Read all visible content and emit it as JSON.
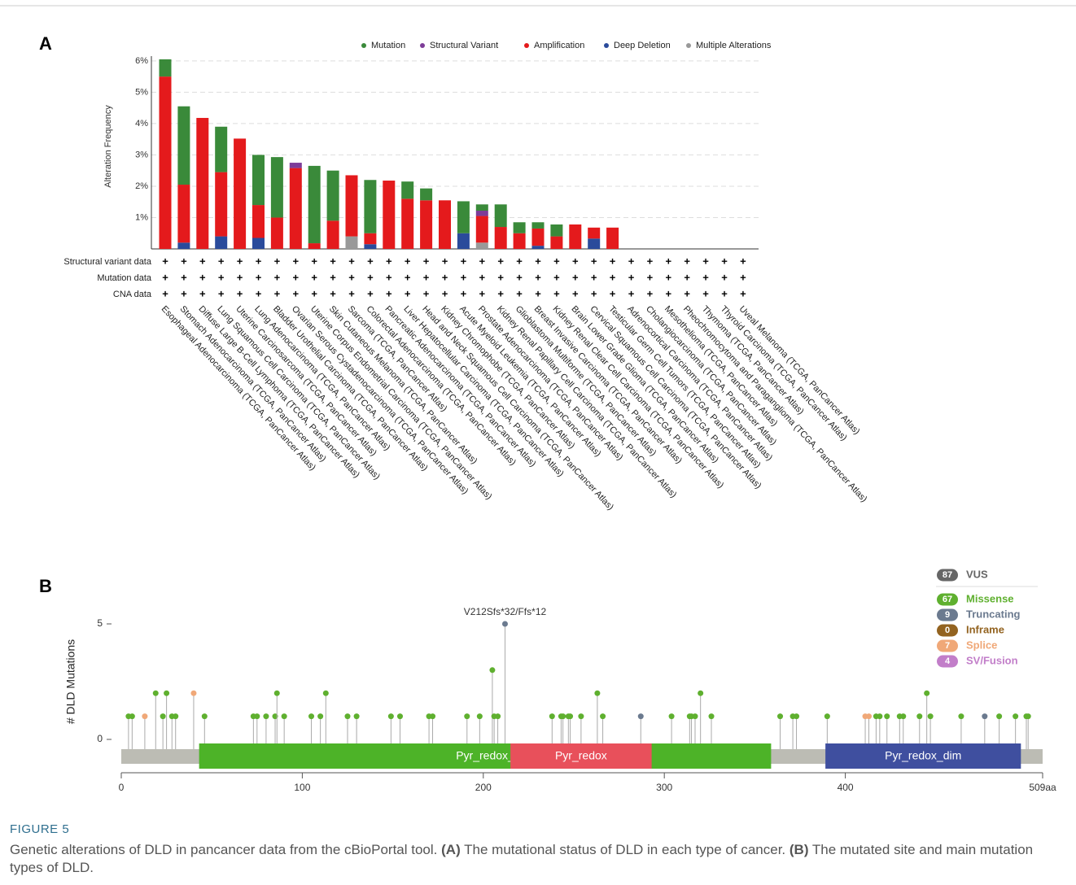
{
  "chart_data": [
    {
      "type": "bar",
      "panel_label": "A",
      "ylabel": "Alteration Frequency",
      "categories": [
        "Esophageal Adenocarcinoma (TCGA, PanCancer Atlas)",
        "Stomach Adenocarcinoma (TCGA, PanCancer Atlas)",
        "Diffuse Large B-Cell Lymphoma (TCGA, PanCancer Atlas)",
        "Lung Squamous Cell Carcinoma (TCGA, PanCancer Atlas)",
        "Uterine Carcinosarcoma (TCGA, PanCancer Atlas)",
        "Lung Adenocarcinoma (TCGA, PanCancer Atlas)",
        "Bladder Urothelial Carcinoma (TCGA, PanCancer Atlas)",
        "Ovarian Serous Cystadenocarcinoma (TCGA, PanCancer Atlas)",
        "Uterine Corpus Endometrial Carcinoma (TCGA, PanCancer Atlas)",
        "Skin Cutaneous Melanoma (TCGA, PanCancer Atlas)",
        "Sarcoma (TCGA, PanCancer Atlas)",
        "Colorectal Adenocarcinoma (TCGA, PanCancer Atlas)",
        "Pancreatic Adenocarcinoma (TCGA, PanCancer Atlas)",
        "Liver Hepatocellular Carcinoma (TCGA, PanCancer Atlas)",
        "Head and Neck Squamous Cell Carcinoma (TCGA, PanCancer Atlas)",
        "Kidney Chromophobe (TCGA, PanCancer Atlas)",
        "Acute Myeloid Leukemia (TCGA, PanCancer Atlas)",
        "Prostate Adenocarcinoma (TCGA, PanCancer Atlas)",
        "Kidney Renal Papillary Cell Carcinoma (TCGA, PanCancer Atlas)",
        "Glioblastoma Multiforme (TCGA, PanCancer Atlas)",
        "Breast Invasive Carcinoma (TCGA, PanCancer Atlas)",
        "Kidney Renal Clear Cell Carcinoma (TCGA, PanCancer Atlas)",
        "Brain Lower Grade Glioma (TCGA, PanCancer Atlas)",
        "Cervical Squamous Cell Carcinoma (TCGA, PanCancer Atlas)",
        "Testicular Germ Cell Tumors (TCGA, PanCancer Atlas)",
        "Adrenocortical Carcinoma (TCGA, PanCancer Atlas)",
        "Cholangiocarcinoma (TCGA, PanCancer Atlas)",
        "Mesothelioma (TCGA, PanCancer Atlas)",
        "Pheochromocytoma and Paraganglioma (TCGA, PanCancer Atlas)",
        "Thymoma (TCGA, PanCancer Atlas)",
        "Thyroid Carcinoma (TCGA, PanCancer Atlas)",
        "Uveal Melanoma (TCGA, PanCancer Atlas)"
      ],
      "series": [
        {
          "name": "Mutation",
          "color": "#3a8a3a",
          "values": [
            0.55,
            2.5,
            0,
            1.45,
            0,
            1.6,
            1.93,
            0,
            2.47,
            1.6,
            0,
            1.7,
            0,
            0.55,
            0.38,
            0,
            1.02,
            0.2,
            0.72,
            0.35,
            0.2,
            0.38,
            0,
            0,
            0,
            0,
            0,
            0,
            0,
            0,
            0,
            0
          ]
        },
        {
          "name": "Structural Variant",
          "color": "#7d3c98",
          "values": [
            0,
            0,
            0,
            0,
            0,
            0,
            0,
            0.17,
            0,
            0,
            0,
            0,
            0,
            0,
            0,
            0,
            0,
            0.17,
            0,
            0,
            0,
            0,
            0,
            0,
            0,
            0,
            0,
            0,
            0,
            0,
            0,
            0
          ]
        },
        {
          "name": "Amplification",
          "color": "#e41a1c",
          "values": [
            5.5,
            1.85,
            4.18,
            2.05,
            3.52,
            1.05,
            1.0,
            2.58,
            0.18,
            0.9,
            1.95,
            0.35,
            2.18,
            1.6,
            1.55,
            1.55,
            0,
            0.85,
            0.7,
            0.5,
            0.55,
            0.4,
            0.78,
            0.35,
            0.68,
            0,
            0,
            0,
            0,
            0,
            0,
            0
          ]
        },
        {
          "name": "Deep Deletion",
          "color": "#2a4b9b",
          "values": [
            0,
            0.2,
            0,
            0.4,
            0,
            0.35,
            0,
            0,
            0,
            0,
            0,
            0.15,
            0,
            0,
            0,
            0,
            0.5,
            0,
            0,
            0,
            0.1,
            0,
            0,
            0.33,
            0,
            0,
            0,
            0,
            0,
            0,
            0,
            0
          ]
        },
        {
          "name": "Multiple Alterations",
          "color": "#999999",
          "values": [
            0,
            0,
            0,
            0,
            0,
            0,
            0,
            0,
            0,
            0,
            0.4,
            0,
            0,
            0,
            0,
            0,
            0,
            0.2,
            0,
            0,
            0,
            0,
            0,
            0,
            0,
            0,
            0,
            0,
            0,
            0,
            0,
            0
          ]
        }
      ],
      "ylim": [
        0,
        6.1
      ],
      "yticks": [
        {
          "value": 1,
          "label": "1%"
        },
        {
          "value": 2,
          "label": "2%"
        },
        {
          "value": 3,
          "label": "3%"
        },
        {
          "value": 4,
          "label": "4%"
        },
        {
          "value": 5,
          "label": "5%"
        },
        {
          "value": 6,
          "label": "6%"
        }
      ],
      "grid": true,
      "row_labels": [
        "Structural variant data",
        "Mutation data",
        "CNA data"
      ],
      "row_marker": "+"
    },
    {
      "type": "lollipop",
      "panel_label": "B",
      "ylabel": "# DLD Mutations",
      "xlim": [
        0,
        509
      ],
      "xticks": [
        0,
        100,
        200,
        300,
        400,
        {
          "value": 509,
          "label": "509aa"
        }
      ],
      "ylim": [
        0,
        5
      ],
      "yticks": [
        0,
        5
      ],
      "annotation": "V212Sfs*32/Ffs*12",
      "track_color": "#bcbcb4",
      "domains": [
        {
          "name": "Pyr_redox_",
          "start": 43,
          "end": 359,
          "color": "#4db328"
        },
        {
          "name": "Pyr_redox",
          "start": 215,
          "end": 293,
          "color": "#e8505b"
        },
        {
          "name": "Pyr_redox_dim",
          "start": 389,
          "end": 497,
          "color": "#3f4f9f"
        }
      ],
      "x": [
        4,
        6,
        13,
        19,
        23,
        25,
        28,
        30,
        40,
        46,
        73,
        75,
        80,
        85,
        86,
        90,
        105,
        110,
        113,
        125,
        130,
        149,
        154,
        170,
        172,
        191,
        198,
        205,
        206,
        208,
        212,
        238,
        243,
        244,
        247,
        248,
        254,
        263,
        266,
        287,
        304,
        314,
        315,
        317,
        320,
        326,
        364,
        371,
        373,
        390,
        411,
        413,
        417,
        419,
        423,
        430,
        432,
        441,
        445,
        447,
        464,
        477,
        485,
        494,
        500,
        501
      ],
      "values": [
        1,
        1,
        1,
        2,
        1,
        2,
        1,
        1,
        2,
        1,
        1,
        1,
        1,
        1,
        2,
        1,
        1,
        1,
        2,
        1,
        1,
        1,
        1,
        1,
        1,
        1,
        1,
        3,
        1,
        1,
        5,
        1,
        1,
        1,
        1,
        1,
        1,
        2,
        1,
        1,
        1,
        1,
        1,
        1,
        2,
        1,
        1,
        1,
        1,
        1,
        1,
        1,
        1,
        1,
        1,
        1,
        1,
        1,
        2,
        1,
        1,
        1,
        1,
        1,
        1,
        1
      ],
      "colors": [
        "#5fb02f",
        "#5fb02f",
        "#f0a878",
        "#5fb02f",
        "#5fb02f",
        "#5fb02f",
        "#5fb02f",
        "#5fb02f",
        "#f0a878",
        "#5fb02f",
        "#5fb02f",
        "#5fb02f",
        "#5fb02f",
        "#5fb02f",
        "#5fb02f",
        "#5fb02f",
        "#5fb02f",
        "#5fb02f",
        "#5fb02f",
        "#5fb02f",
        "#5fb02f",
        "#5fb02f",
        "#5fb02f",
        "#5fb02f",
        "#5fb02f",
        "#5fb02f",
        "#5fb02f",
        "#5fb02f",
        "#5fb02f",
        "#5fb02f",
        "#6b7a8f",
        "#5fb02f",
        "#5fb02f",
        "#5fb02f",
        "#5fb02f",
        "#5fb02f",
        "#5fb02f",
        "#5fb02f",
        "#5fb02f",
        "#6b7a8f",
        "#5fb02f",
        "#5fb02f",
        "#5fb02f",
        "#5fb02f",
        "#5fb02f",
        "#5fb02f",
        "#5fb02f",
        "#5fb02f",
        "#5fb02f",
        "#5fb02f",
        "#f0a878",
        "#f0a878",
        "#5fb02f",
        "#5fb02f",
        "#5fb02f",
        "#5fb02f",
        "#5fb02f",
        "#5fb02f",
        "#5fb02f",
        "#5fb02f",
        "#5fb02f",
        "#6b7a8f",
        "#5fb02f",
        "#5fb02f",
        "#5fb02f",
        "#5fb02f"
      ],
      "legend": [
        {
          "count": 87,
          "label": "VUS",
          "color": "#666666"
        },
        {
          "count": 67,
          "label": "Missense",
          "color": "#5fb02f"
        },
        {
          "count": 9,
          "label": "Truncating",
          "color": "#6b7a8f"
        },
        {
          "count": 0,
          "label": "Inframe",
          "color": "#936320"
        },
        {
          "count": 7,
          "label": "Splice",
          "color": "#f0a878"
        },
        {
          "count": 4,
          "label": "SV/Fusion",
          "color": "#c27ec9"
        }
      ]
    }
  ],
  "figure": {
    "title": "FIGURE 5",
    "caption": [
      "Genetic alterations of DLD in pancancer data from the cBioPortal tool. ",
      "(A)",
      " The mutational status of DLD in each type of cancer. ",
      "(B)",
      " The mutated site and main mutation types of DLD."
    ]
  }
}
